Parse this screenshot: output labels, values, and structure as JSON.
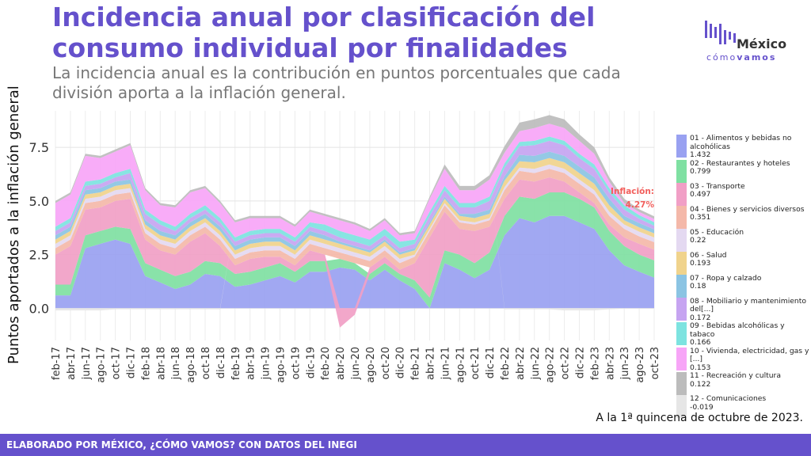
{
  "header": {
    "title": "Incidencia anual por clasificación del consumo individual por finalidades",
    "subtitle": "La incidencia anual es la contribución en puntos porcentuales que cada división aporta a la inflación general."
  },
  "logo": {
    "line1": "México",
    "line2_a": "cómo",
    "line2_b": "vamos"
  },
  "note": "A la 1ª quincena de octubre de 2023.",
  "footer": "ELABORADO POR MÉXICO, ¿CÓMO VAMOS? CON DATOS DEL INEGI",
  "annotation": {
    "label": "Inflación:",
    "value": "4.27%",
    "color": "#f25f5c"
  },
  "chart_data": {
    "type": "area",
    "stacked": true,
    "ylabel": "Puntos aportados a la inflación general",
    "ylim": [
      -1.5,
      9.2
    ],
    "yticks": [
      0.0,
      2.5,
      5.0,
      7.5
    ],
    "ytick_labels": [
      "0.0",
      "2.5",
      "5.0",
      "7.5"
    ],
    "xtick_labels": [
      "feb-17",
      "abr-17",
      "jun-17",
      "ago-17",
      "oct-17",
      "dic-17",
      "feb-18",
      "abr-18",
      "jun-18",
      "ago-18",
      "oct-18",
      "dic-18",
      "feb-19",
      "abr-19",
      "jun-19",
      "ago-19",
      "oct-19",
      "dic-19",
      "feb-20",
      "abr-20",
      "jun-20",
      "ago-20",
      "oct-20",
      "dic-20",
      "feb-21",
      "abr-21",
      "jun-21",
      "ago-21",
      "oct-21",
      "dic-21",
      "feb-22",
      "abr-22",
      "jun-22",
      "ago-22",
      "oct-22",
      "dic-22",
      "feb-23",
      "abr-23",
      "jun-23",
      "ago-23",
      "oct-23"
    ],
    "grid": true,
    "legend_position": "right",
    "series": [
      {
        "name": "01 - Alimentos y bebidas no alcohólicas",
        "last": "1.432",
        "color": "#99a1f1",
        "values": [
          0.6,
          0.6,
          2.8,
          3.0,
          3.2,
          3.0,
          1.5,
          1.2,
          0.9,
          1.1,
          1.6,
          1.5,
          1.0,
          1.1,
          1.3,
          1.5,
          1.2,
          1.7,
          1.7,
          1.9,
          1.8,
          1.3,
          1.8,
          1.3,
          0.9,
          0.0,
          2.1,
          1.8,
          1.4,
          1.8,
          3.4,
          4.2,
          4.0,
          4.3,
          4.3,
          4.0,
          3.7,
          2.7,
          2.0,
          1.7,
          1.43
        ]
      },
      {
        "name": "02 - Restaurantes y hoteles",
        "last": "0.799",
        "color": "#7fe0a2",
        "values": [
          0.5,
          0.5,
          0.6,
          0.6,
          0.6,
          0.7,
          0.6,
          0.6,
          0.6,
          0.6,
          0.6,
          0.6,
          0.6,
          0.6,
          0.6,
          0.6,
          0.5,
          0.5,
          0.5,
          0.4,
          0.3,
          0.3,
          0.3,
          0.3,
          0.4,
          0.5,
          0.6,
          0.7,
          0.7,
          0.8,
          0.9,
          1.0,
          1.1,
          1.1,
          1.1,
          1.1,
          1.0,
          0.9,
          0.9,
          0.8,
          0.8
        ]
      },
      {
        "name": "03 - Transporte",
        "last": "0.497",
        "color": "#f19fc6",
        "values": [
          1.4,
          1.8,
          1.2,
          1.1,
          1.2,
          1.4,
          1.1,
          0.9,
          1.0,
          1.4,
          1.3,
          0.8,
          0.4,
          0.6,
          0.5,
          0.3,
          0.3,
          0.5,
          0.3,
          -0.9,
          -0.3,
          0.3,
          0.3,
          0.2,
          0.8,
          2.8,
          1.8,
          1.2,
          1.5,
          1.2,
          0.8,
          0.8,
          0.8,
          0.7,
          0.5,
          0.3,
          0.2,
          0.3,
          0.4,
          0.5,
          0.5
        ]
      },
      {
        "name": "04 - Bienes y servicios diversos",
        "last": "0.351",
        "color": "#f4b8a9",
        "values": [
          0.3,
          0.3,
          0.3,
          0.3,
          0.3,
          0.3,
          0.3,
          0.3,
          0.3,
          0.3,
          0.3,
          0.3,
          0.3,
          0.3,
          0.3,
          0.3,
          0.3,
          0.3,
          0.3,
          0.3,
          0.3,
          0.3,
          0.3,
          0.3,
          0.3,
          0.3,
          0.3,
          0.3,
          0.3,
          0.3,
          0.4,
          0.4,
          0.4,
          0.4,
          0.4,
          0.4,
          0.4,
          0.4,
          0.4,
          0.35,
          0.35
        ]
      },
      {
        "name": "05 - Educación",
        "last": "0.22",
        "color": "#e4d9f1",
        "values": [
          0.2,
          0.2,
          0.2,
          0.2,
          0.2,
          0.2,
          0.2,
          0.2,
          0.2,
          0.2,
          0.2,
          0.2,
          0.2,
          0.2,
          0.2,
          0.2,
          0.2,
          0.2,
          0.2,
          0.2,
          0.2,
          0.2,
          0.2,
          0.2,
          0.1,
          0.1,
          0.1,
          0.1,
          0.1,
          0.1,
          0.15,
          0.15,
          0.2,
          0.2,
          0.2,
          0.2,
          0.2,
          0.2,
          0.2,
          0.22,
          0.22
        ]
      },
      {
        "name": "06 - Salud",
        "last": "0.193",
        "color": "#f0d38c",
        "values": [
          0.2,
          0.2,
          0.2,
          0.2,
          0.2,
          0.2,
          0.2,
          0.2,
          0.2,
          0.2,
          0.2,
          0.2,
          0.2,
          0.2,
          0.2,
          0.2,
          0.2,
          0.2,
          0.2,
          0.2,
          0.2,
          0.2,
          0.2,
          0.2,
          0.2,
          0.2,
          0.2,
          0.2,
          0.2,
          0.2,
          0.3,
          0.3,
          0.3,
          0.3,
          0.3,
          0.3,
          0.3,
          0.3,
          0.2,
          0.2,
          0.193
        ]
      },
      {
        "name": "07 - Ropa y calzado",
        "last": "0.18",
        "color": "#8bc4e3",
        "values": [
          0.2,
          0.2,
          0.2,
          0.2,
          0.2,
          0.2,
          0.2,
          0.2,
          0.2,
          0.2,
          0.2,
          0.2,
          0.2,
          0.2,
          0.2,
          0.2,
          0.2,
          0.2,
          0.2,
          0.1,
          0.1,
          0.1,
          0.1,
          0.1,
          0.1,
          0.1,
          0.1,
          0.1,
          0.2,
          0.2,
          0.2,
          0.3,
          0.3,
          0.3,
          0.3,
          0.3,
          0.3,
          0.3,
          0.2,
          0.2,
          0.18
        ]
      },
      {
        "name": "08 - Mobiliario y mantenimiento del[...]",
        "last": "0.172",
        "color": "#c6a4f1",
        "values": [
          0.2,
          0.2,
          0.2,
          0.2,
          0.2,
          0.3,
          0.3,
          0.3,
          0.2,
          0.2,
          0.2,
          0.2,
          0.2,
          0.2,
          0.2,
          0.2,
          0.2,
          0.2,
          0.2,
          0.2,
          0.2,
          0.2,
          0.2,
          0.2,
          0.2,
          0.3,
          0.3,
          0.3,
          0.3,
          0.4,
          0.4,
          0.4,
          0.5,
          0.5,
          0.5,
          0.4,
          0.4,
          0.3,
          0.3,
          0.2,
          0.172
        ]
      },
      {
        "name": "09 - Bebidas alcohólicas y tabaco",
        "last": "0.166",
        "color": "#7de3e0",
        "values": [
          0.2,
          0.2,
          0.2,
          0.2,
          0.2,
          0.2,
          0.2,
          0.2,
          0.2,
          0.2,
          0.2,
          0.2,
          0.2,
          0.2,
          0.2,
          0.2,
          0.2,
          0.2,
          0.3,
          0.3,
          0.3,
          0.3,
          0.3,
          0.3,
          0.2,
          0.2,
          0.2,
          0.2,
          0.2,
          0.2,
          0.2,
          0.2,
          0.2,
          0.2,
          0.2,
          0.2,
          0.2,
          0.2,
          0.2,
          0.17,
          0.166
        ]
      },
      {
        "name": "10 - Vivienda, electricidad, gas y [...]",
        "last": "0.153",
        "color": "#f7a5f7",
        "values": [
          1.1,
          1.1,
          1.2,
          1.0,
          1.0,
          1.1,
          0.9,
          0.7,
          0.9,
          1.0,
          0.8,
          0.7,
          0.7,
          0.6,
          0.5,
          0.5,
          0.5,
          0.5,
          0.4,
          0.5,
          0.5,
          0.4,
          0.4,
          0.3,
          0.3,
          0.6,
          0.8,
          0.6,
          0.6,
          0.8,
          0.5,
          0.5,
          0.6,
          0.6,
          0.6,
          0.6,
          0.5,
          0.3,
          0.1,
          0.15,
          0.153
        ]
      },
      {
        "name": "11 - Recreación y cultura",
        "last": "0.122",
        "color": "#bcbcbc",
        "values": [
          0.1,
          0.1,
          0.1,
          0.1,
          0.1,
          0.1,
          0.1,
          0.1,
          0.1,
          0.1,
          0.1,
          0.1,
          0.1,
          0.1,
          0.1,
          0.1,
          0.1,
          0.1,
          0.1,
          0.1,
          0.1,
          0.1,
          0.1,
          0.1,
          0.1,
          0.1,
          0.2,
          0.2,
          0.2,
          0.2,
          0.3,
          0.4,
          0.4,
          0.4,
          0.4,
          0.3,
          0.3,
          0.2,
          0.2,
          0.12,
          0.122
        ]
      },
      {
        "name": "12 - Comunicaciones",
        "last": "-0.019",
        "color": "#e6e6e6",
        "values": [
          -0.1,
          -0.1,
          -0.1,
          -0.1,
          -0.05,
          -0.05,
          -0.05,
          -0.05,
          -0.05,
          -0.05,
          -0.05,
          -0.05,
          0.0,
          0.0,
          0.0,
          0.0,
          0.0,
          0.0,
          0.0,
          0.0,
          0.0,
          0.0,
          0.0,
          0.0,
          0.0,
          0.0,
          0.0,
          0.0,
          0.0,
          0.0,
          -0.05,
          -0.05,
          -0.05,
          -0.05,
          -0.1,
          -0.1,
          -0.1,
          -0.05,
          -0.02,
          -0.02,
          -0.019
        ]
      }
    ]
  }
}
